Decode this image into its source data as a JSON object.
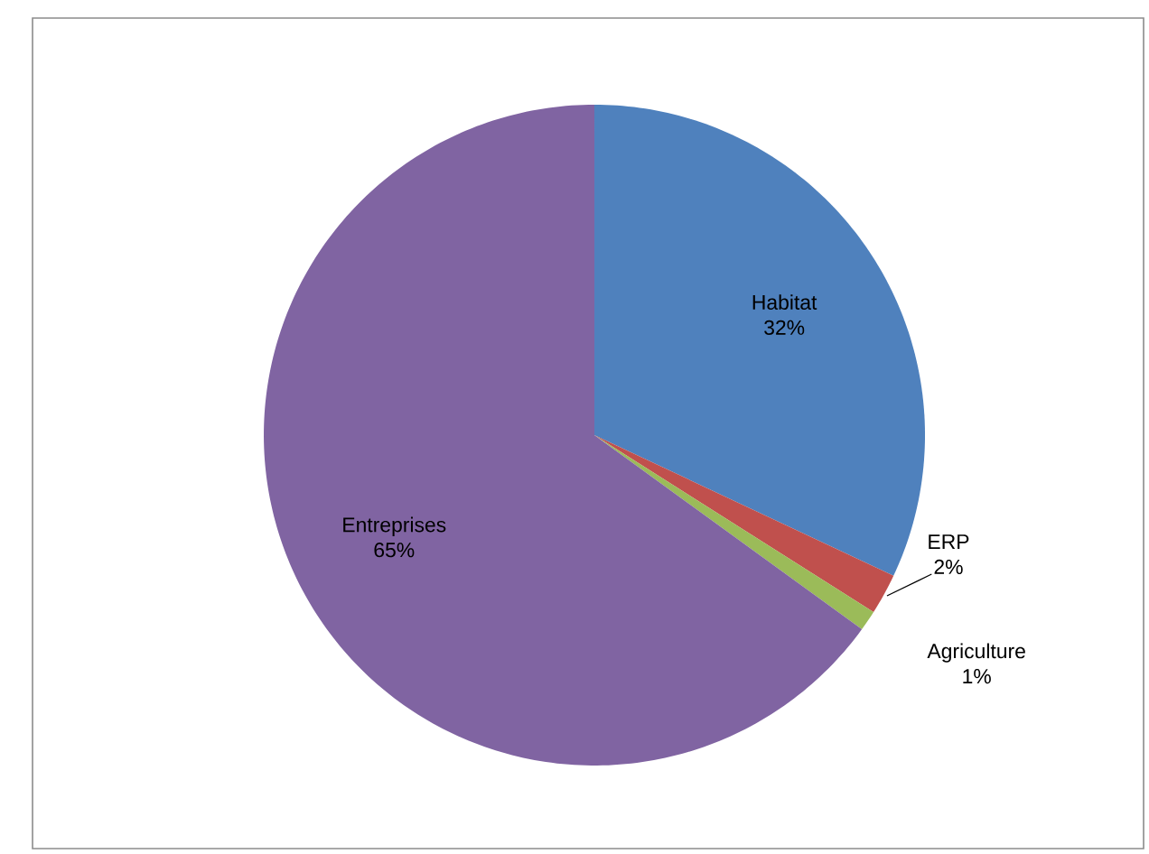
{
  "chart_data": {
    "type": "pie",
    "categories": [
      "Habitat",
      "ERP",
      "Agriculture",
      "Entreprises"
    ],
    "values": [
      32,
      2,
      1,
      65
    ],
    "value_labels": [
      "32%",
      "2%",
      "1%",
      "65%"
    ],
    "colors": [
      "#4f81bd",
      "#c0504d",
      "#9bbb59",
      "#8064a2"
    ]
  }
}
